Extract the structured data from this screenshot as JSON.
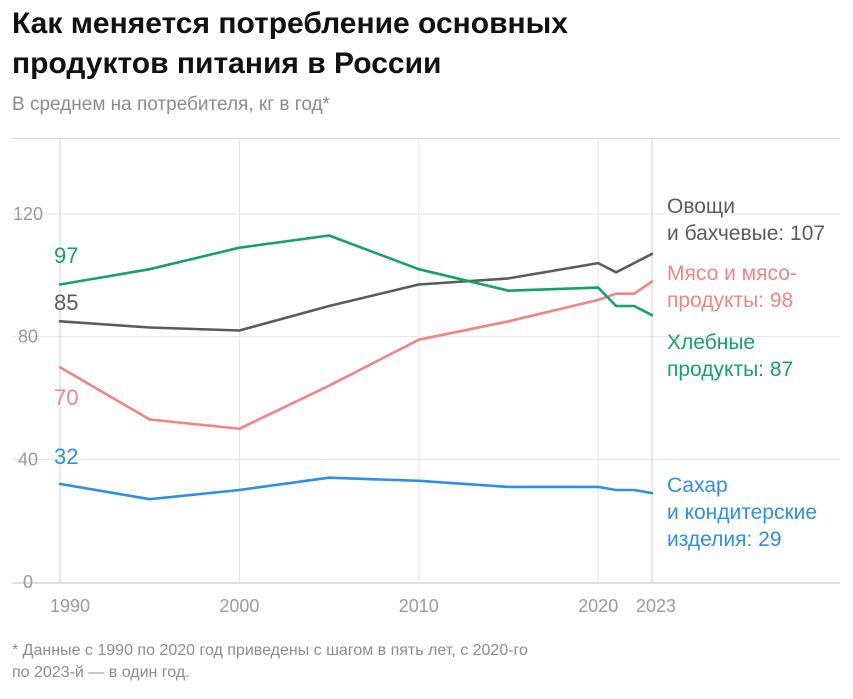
{
  "header": {
    "title_line1": "Как меняется потребление основных",
    "title_line2": "продуктов питания в России",
    "subtitle": "В среднем на потребителя, кг в год*"
  },
  "footnote": {
    "line1": "* Данные с 1990 по 2020 год приведены с шагом в пять лет, с 2020-го",
    "line2": "по 2023-й — в один год."
  },
  "chart_data": {
    "type": "line",
    "xlabel": "",
    "ylabel": "",
    "xlim": [
      1990,
      2023
    ],
    "ylim": [
      0,
      140
    ],
    "yticks": [
      0,
      40,
      80,
      120
    ],
    "xticks": [
      1990,
      2000,
      2010,
      2020,
      2023
    ],
    "grid": true,
    "series": [
      {
        "name": "vegetables",
        "label_lines": [
          "Овощи",
          "и бахчевые: 107"
        ],
        "start_label": "85",
        "color": "#5b5b5b",
        "x": [
          1990,
          1995,
          2000,
          2005,
          2010,
          2015,
          2020,
          2021,
          2022,
          2023
        ],
        "values": [
          85,
          83,
          82,
          90,
          97,
          99,
          104,
          101,
          104,
          107
        ]
      },
      {
        "name": "meat",
        "label_lines": [
          "Мясо и мясо-",
          "продукты: 98"
        ],
        "start_label": "70",
        "color": "#ef8585",
        "x": [
          1990,
          1995,
          2000,
          2005,
          2010,
          2015,
          2020,
          2021,
          2022,
          2023
        ],
        "values": [
          70,
          53,
          50,
          64,
          79,
          85,
          92,
          94,
          94,
          98
        ]
      },
      {
        "name": "bread",
        "label_lines": [
          "Хлебные",
          "продукты: 87"
        ],
        "start_label": "97",
        "color": "#16a06b",
        "x": [
          1990,
          1995,
          2000,
          2005,
          2010,
          2015,
          2020,
          2021,
          2022,
          2023
        ],
        "values": [
          97,
          102,
          109,
          113,
          102,
          95,
          96,
          90,
          90,
          87
        ]
      },
      {
        "name": "sugar",
        "label_lines": [
          "Сахар",
          "и кондитерские",
          "изделия: 29"
        ],
        "start_label": "32",
        "color": "#2f8fe0",
        "x": [
          1990,
          1995,
          2000,
          2005,
          2010,
          2015,
          2020,
          2021,
          2022,
          2023
        ],
        "values": [
          32,
          27,
          30,
          34,
          33,
          31,
          31,
          30,
          30,
          29
        ]
      }
    ]
  }
}
